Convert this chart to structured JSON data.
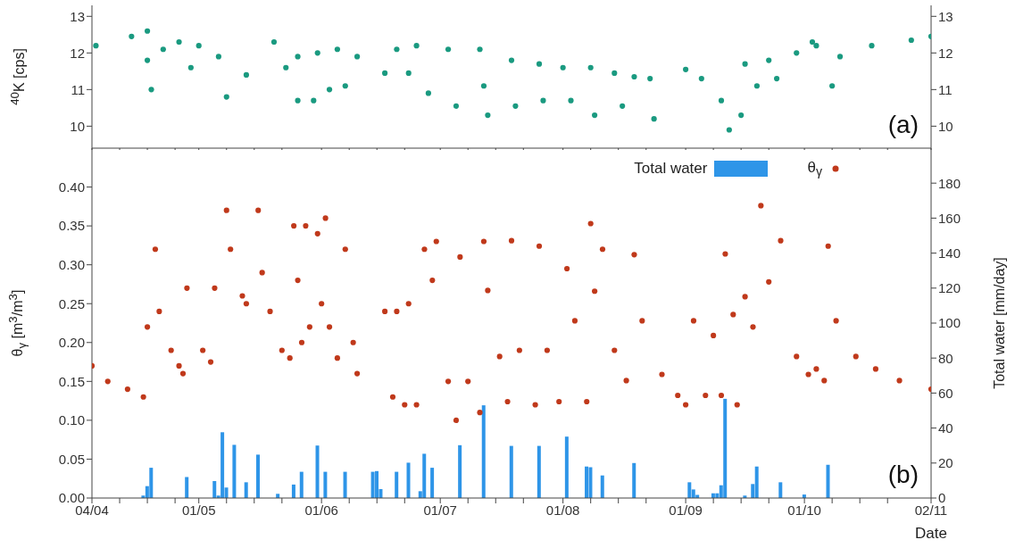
{
  "chart_data": [
    {
      "type": "scatter",
      "ylabel": "$^{40}$K [cps]",
      "annotations": [
        "(a)"
      ],
      "tick_labels": "y",
      "marker": "circle",
      "xlim": [
        "--04-04",
        "--11-02"
      ],
      "xticks": [
        {
          "value": "--04-04",
          "label": null
        },
        {
          "value": "--04-11",
          "label": null
        },
        {
          "value": "--04-18",
          "label": null
        },
        {
          "value": "--04-25",
          "label": null
        },
        {
          "value": "--05-01",
          "label": null
        },
        {
          "value": "--05-08",
          "label": null
        },
        {
          "value": "--05-15",
          "label": null
        },
        {
          "value": "--05-22",
          "label": null
        },
        {
          "value": "--06-01",
          "label": null
        },
        {
          "value": "--06-08",
          "label": null
        },
        {
          "value": "--06-15",
          "label": null
        },
        {
          "value": "--06-22",
          "label": null
        },
        {
          "value": "--07-01",
          "label": null
        },
        {
          "value": "--07-08",
          "label": null
        },
        {
          "value": "--07-15",
          "label": null
        },
        {
          "value": "--07-22",
          "label": null
        },
        {
          "value": "--08-01",
          "label": null
        },
        {
          "value": "--08-08",
          "label": null
        },
        {
          "value": "--08-15",
          "label": null
        },
        {
          "value": "--08-22",
          "label": null
        },
        {
          "value": "--09-01",
          "label": null
        },
        {
          "value": "--09-08",
          "label": null
        },
        {
          "value": "--09-15",
          "label": null
        },
        {
          "value": "--09-22",
          "label": null
        },
        {
          "value": "--10-01",
          "label": null
        },
        {
          "value": "--10-08",
          "label": null
        },
        {
          "value": "--10-15",
          "label": null
        },
        {
          "value": "--10-22",
          "label": null
        },
        {
          "value": "--11-02",
          "label": null
        }
      ],
      "ylim": [
        9.4,
        13.3
      ],
      "yticks": [
        10,
        11,
        12,
        13
      ],
      "y2lim": [
        9.4,
        13.3
      ],
      "y2ticks": [
        10,
        11,
        12,
        13
      ],
      "series": [
        {
          "color": "#1a9a80",
          "x": [
            "--04-05",
            "--04-14",
            "--04-18",
            "--04-18",
            "--04-19",
            "--04-22",
            "--04-26",
            "--04-29",
            "--05-01",
            "--05-06",
            "--05-08",
            "--05-13",
            "--05-20",
            "--05-23",
            "--05-26",
            "--05-26",
            "--05-30",
            "--05-31",
            "--06-03",
            "--06-05",
            "--06-07",
            "--06-10",
            "--06-17",
            "--06-20",
            "--06-23",
            "--06-25",
            "--06-28",
            "--07-03",
            "--07-05",
            "--07-11",
            "--07-12",
            "--07-13",
            "--07-19",
            "--07-20",
            "--07-26",
            "--07-27",
            "--08-01",
            "--08-03",
            "--08-08",
            "--08-09",
            "--08-14",
            "--08-16",
            "--08-19",
            "--08-23",
            "--08-24",
            "--09-01",
            "--09-05",
            "--09-10",
            "--09-12",
            "--09-15",
            "--09-16",
            "--09-19",
            "--09-22",
            "--09-24",
            "--09-29",
            "--10-03",
            "--10-04",
            "--10-08",
            "--10-10",
            "--10-18",
            "--10-28",
            "--11-02"
          ],
          "values": [
            12.2,
            12.45,
            12.6,
            11.8,
            11.0,
            12.1,
            12.3,
            11.6,
            12.2,
            11.9,
            10.8,
            11.4,
            12.3,
            11.6,
            10.7,
            11.9,
            10.7,
            12.0,
            11.0,
            12.1,
            11.1,
            11.9,
            11.45,
            12.1,
            11.45,
            12.2,
            10.9,
            12.1,
            10.55,
            12.1,
            11.1,
            10.3,
            11.8,
            10.55,
            11.7,
            10.7,
            11.6,
            10.7,
            11.6,
            10.3,
            11.45,
            10.55,
            11.35,
            11.3,
            10.2,
            11.55,
            11.3,
            10.7,
            9.9,
            10.3,
            11.7,
            11.1,
            11.8,
            11.3,
            12.0,
            12.3,
            12.2,
            11.1,
            11.9,
            12.2,
            12.35,
            12.45
          ]
        }
      ]
    },
    {
      "type": "scatter",
      "ylabel": "θ$_{γ}$ [m$^{3}$/m$^{3}$]",
      "y2label": "Total water [mm/day]",
      "xlabel": "Date",
      "annotations": [
        "(b)"
      ],
      "legend": "top right",
      "marker": "circle",
      "xlim": [
        "--04-04",
        "--11-02"
      ],
      "xticks": [
        {
          "value": "--04-04",
          "label": "04/04"
        },
        {
          "value": "--04-11",
          "label": null
        },
        {
          "value": "--04-18",
          "label": null
        },
        {
          "value": "--04-25",
          "label": null
        },
        {
          "value": "--05-01",
          "label": "01/05"
        },
        {
          "value": "--05-08",
          "label": null
        },
        {
          "value": "--05-15",
          "label": null
        },
        {
          "value": "--05-22",
          "label": null
        },
        {
          "value": "--06-01",
          "label": "01/06"
        },
        {
          "value": "--06-08",
          "label": null
        },
        {
          "value": "--06-15",
          "label": null
        },
        {
          "value": "--06-22",
          "label": null
        },
        {
          "value": "--07-01",
          "label": "01/07"
        },
        {
          "value": "--07-08",
          "label": null
        },
        {
          "value": "--07-15",
          "label": null
        },
        {
          "value": "--07-22",
          "label": null
        },
        {
          "value": "--08-01",
          "label": "01/08"
        },
        {
          "value": "--08-08",
          "label": null
        },
        {
          "value": "--08-15",
          "label": null
        },
        {
          "value": "--08-22",
          "label": null
        },
        {
          "value": "--09-01",
          "label": "01/09"
        },
        {
          "value": "--09-08",
          "label": null
        },
        {
          "value": "--09-15",
          "label": null
        },
        {
          "value": "--09-22",
          "label": null
        },
        {
          "value": "--10-01",
          "label": "01/10"
        },
        {
          "value": "--10-08",
          "label": null
        },
        {
          "value": "--10-15",
          "label": null
        },
        {
          "value": "--10-22",
          "label": null
        },
        {
          "value": "--11-02",
          "label": "02/11"
        }
      ],
      "ylim": [
        0,
        0.45
      ],
      "yticks": [
        {
          "value": 0,
          "label": "0.00"
        },
        {
          "value": 0.05,
          "label": "0.05"
        },
        {
          "value": 0.1,
          "label": "0.10"
        },
        {
          "value": 0.15,
          "label": "0.15"
        },
        {
          "value": 0.2,
          "label": "0.20"
        },
        {
          "value": 0.25,
          "label": "0.25"
        },
        {
          "value": 0.3,
          "label": "0.30"
        },
        {
          "value": 0.35,
          "label": "0.35"
        },
        {
          "value": 0.4,
          "label": "0.40"
        }
      ],
      "y2lim": [
        0,
        200
      ],
      "y2ticks": [
        0,
        20,
        40,
        60,
        80,
        100,
        120,
        140,
        160,
        180
      ],
      "series": [
        {
          "name": "Total water",
          "type": "bar",
          "axis": "y2",
          "color": "#2e95e8",
          "x": [
            "--04-17",
            "--04-18",
            "--04-19",
            "--04-28",
            "--05-05",
            "--05-06",
            "--05-07",
            "--05-08",
            "--05-10",
            "--05-13",
            "--05-16",
            "--05-21",
            "--05-25",
            "--05-27",
            "--05-31",
            "--06-02",
            "--06-07",
            "--06-14",
            "--06-15",
            "--06-16",
            "--06-20",
            "--06-23",
            "--06-26",
            "--06-27",
            "--06-29",
            "--07-06",
            "--07-12",
            "--07-19",
            "--07-26",
            "--08-02",
            "--08-07",
            "--08-08",
            "--08-11",
            "--08-19",
            "--09-02",
            "--09-03",
            "--09-04",
            "--09-08",
            "--09-09",
            "--09-10",
            "--09-11",
            "--09-16",
            "--09-18",
            "--09-19",
            "--09-25",
            "--10-01",
            "--10-07"
          ],
          "values": [
            1.4,
            6.8,
            17.3,
            12,
            9.7,
            1.4,
            37.6,
            6,
            30.4,
            9,
            24.8,
            2.4,
            7.7,
            15,
            30,
            15,
            15,
            15,
            15.4,
            5.1,
            15,
            20.2,
            3.9,
            25.3,
            17.3,
            30.2,
            53,
            29.8,
            29.8,
            35.1,
            18,
            17.6,
            12.9,
            20,
            9,
            4.9,
            1.8,
            2.7,
            2.7,
            7.3,
            56.7,
            1.4,
            8,
            18,
            9,
            2,
            19
          ]
        },
        {
          "name": "θ$_{γ}$",
          "color": "#c0391b",
          "x": [
            "--04-04",
            "--04-08",
            "--04-13",
            "--04-17",
            "--04-18",
            "--04-20",
            "--04-21",
            "--04-24",
            "--04-26",
            "--04-27",
            "--04-28",
            "--05-02",
            "--05-04",
            "--05-05",
            "--05-08",
            "--05-09",
            "--05-12",
            "--05-13",
            "--05-16",
            "--05-17",
            "--05-19",
            "--05-22",
            "--05-24",
            "--05-25",
            "--05-26",
            "--05-27",
            "--05-28",
            "--05-29",
            "--05-31",
            "--06-01",
            "--06-02",
            "--06-03",
            "--06-05",
            "--06-07",
            "--06-09",
            "--06-10",
            "--06-17",
            "--06-19",
            "--06-20",
            "--06-22",
            "--06-23",
            "--06-25",
            "--06-27",
            "--06-29",
            "--06-30",
            "--07-03",
            "--07-05",
            "--07-06",
            "--07-08",
            "--07-11",
            "--07-12",
            "--07-13",
            "--07-16",
            "--07-18",
            "--07-19",
            "--07-21",
            "--07-25",
            "--07-26",
            "--07-28",
            "--07-31",
            "--08-02",
            "--08-04",
            "--08-07",
            "--08-08",
            "--08-09",
            "--08-11",
            "--08-14",
            "--08-17",
            "--08-19",
            "--08-21",
            "--08-26",
            "--08-30",
            "--09-01",
            "--09-03",
            "--09-06",
            "--09-08",
            "--09-10",
            "--09-11",
            "--09-13",
            "--09-14",
            "--09-16",
            "--09-18",
            "--09-20",
            "--09-22",
            "--09-25",
            "--09-29",
            "--10-02",
            "--10-04",
            "--10-06",
            "--10-07",
            "--10-09",
            "--10-14",
            "--10-19",
            "--10-25",
            "--11-02"
          ],
          "values": [
            0.17,
            0.15,
            0.14,
            0.13,
            0.22,
            0.32,
            0.24,
            0.19,
            0.17,
            0.16,
            0.27,
            0.19,
            0.175,
            0.27,
            0.37,
            0.32,
            0.26,
            0.25,
            0.37,
            0.29,
            0.24,
            0.19,
            0.18,
            0.35,
            0.28,
            0.2,
            0.35,
            0.22,
            0.34,
            0.25,
            0.36,
            0.22,
            0.18,
            0.32,
            0.2,
            0.16,
            0.24,
            0.13,
            0.24,
            0.12,
            0.25,
            0.12,
            0.32,
            0.28,
            0.33,
            0.15,
            0.1,
            0.31,
            0.15,
            0.11,
            0.33,
            0.267,
            0.182,
            0.124,
            0.331,
            0.19,
            0.12,
            0.324,
            0.19,
            0.124,
            0.295,
            0.228,
            0.124,
            0.353,
            0.266,
            0.32,
            0.19,
            0.151,
            0.313,
            0.228,
            0.159,
            0.132,
            0.12,
            0.228,
            0.132,
            0.209,
            0.132,
            0.314,
            0.236,
            0.12,
            0.259,
            0.22,
            0.376,
            0.278,
            0.331,
            0.182,
            0.159,
            0.166,
            0.151,
            0.324,
            0.228,
            0.182,
            0.166,
            0.151,
            0.14
          ]
        }
      ]
    }
  ]
}
